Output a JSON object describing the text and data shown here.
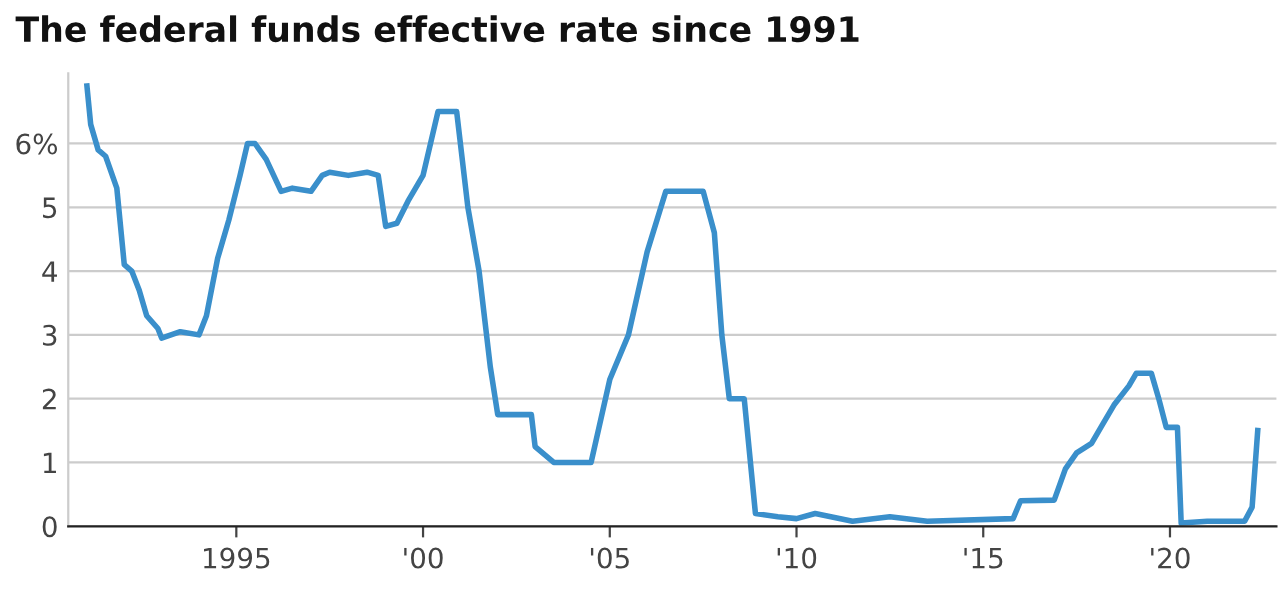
{
  "chart_data": {
    "type": "line",
    "title": "The federal funds effective rate since 1991",
    "x": [
      1991.0,
      1991.1,
      1991.3,
      1991.5,
      1991.8,
      1992.0,
      1992.2,
      1992.4,
      1992.6,
      1992.9,
      1993.0,
      1993.5,
      1994.0,
      1994.2,
      1994.5,
      1994.8,
      1995.1,
      1995.3,
      1995.5,
      1995.8,
      1996.0,
      1996.2,
      1996.5,
      1997.0,
      1997.3,
      1997.5,
      1998.0,
      1998.5,
      1998.8,
      1999.0,
      1999.3,
      1999.6,
      2000.0,
      2000.4,
      2000.9,
      2001.0,
      2001.2,
      2001.5,
      2001.8,
      2002.0,
      2002.5,
      2002.9,
      2003.0,
      2003.5,
      2004.5,
      2005.0,
      2005.5,
      2006.0,
      2006.5,
      2007.5,
      2007.8,
      2008.0,
      2008.2,
      2008.6,
      2008.9,
      2009.5,
      2010.0,
      2010.5,
      2011.5,
      2012.5,
      2013.5,
      2015.8,
      2016.0,
      2016.9,
      2017.2,
      2017.5,
      2017.9,
      2018.2,
      2018.5,
      2018.9,
      2019.1,
      2019.5,
      2019.7,
      2019.9,
      2020.2,
      2020.3,
      2021.0,
      2022.0,
      2022.2,
      2022.35
    ],
    "series": [
      {
        "color": "#3a8fcb",
        "values": [
          6.9,
          6.3,
          5.9,
          5.8,
          5.3,
          4.1,
          4.0,
          3.7,
          3.3,
          3.1,
          2.95,
          3.05,
          3.0,
          3.3,
          4.2,
          4.8,
          5.5,
          6.0,
          6.0,
          5.75,
          5.5,
          5.25,
          5.3,
          5.25,
          5.5,
          5.55,
          5.5,
          5.55,
          5.5,
          4.7,
          4.75,
          5.1,
          5.5,
          6.5,
          6.5,
          6.0,
          5.0,
          4.0,
          2.5,
          1.75,
          1.75,
          1.75,
          1.25,
          1.0,
          1.0,
          2.3,
          3.0,
          4.3,
          5.25,
          5.25,
          4.6,
          3.0,
          2.0,
          2.0,
          0.2,
          0.15,
          0.12,
          0.2,
          0.08,
          0.15,
          0.08,
          0.12,
          0.4,
          0.41,
          0.9,
          1.15,
          1.3,
          1.6,
          1.9,
          2.2,
          2.4,
          2.4,
          2.0,
          1.55,
          1.55,
          0.05,
          0.08,
          0.08,
          0.3,
          1.5
        ]
      }
    ],
    "xlim": [
      1990.5,
      2022.85
    ],
    "xticks": [
      1995,
      {
        "value": 2000,
        "label": "'00"
      },
      {
        "value": 2005,
        "label": "'05"
      },
      {
        "value": 2010,
        "label": "'10"
      },
      {
        "value": 2015,
        "label": "'15"
      },
      {
        "value": 2020,
        "label": "'20"
      }
    ],
    "ylim": [
      0,
      7.1
    ],
    "yticks": [
      0,
      1,
      2,
      3,
      4,
      5,
      {
        "value": 6,
        "label": "6%"
      }
    ],
    "grid": "y",
    "legend": false,
    "marker": "none",
    "line_style": "solid"
  }
}
